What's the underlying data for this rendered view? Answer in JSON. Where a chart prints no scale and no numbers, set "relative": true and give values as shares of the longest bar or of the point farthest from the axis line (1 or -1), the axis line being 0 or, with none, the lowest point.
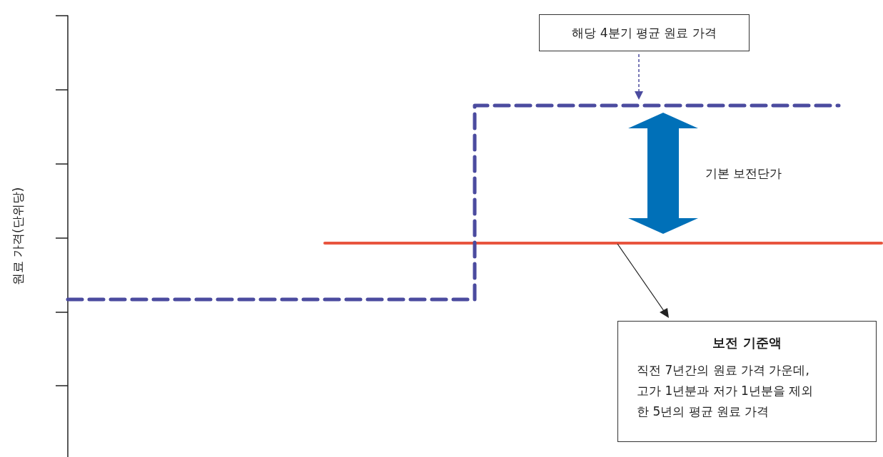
{
  "chart_data": {
    "type": "step",
    "ylabel": "원료 가격(단위당)",
    "relative": true,
    "marker": "none",
    "categories": [
      null,
      null,
      null,
      null,
      null,
      null,
      null,
      null,
      null,
      null,
      null,
      null,
      null,
      null,
      null,
      null,
      null,
      null,
      null,
      null,
      null,
      null,
      null,
      null,
      null,
      null,
      null,
      null,
      null,
      null,
      null,
      null,
      null,
      null,
      null,
      null,
      null,
      null,
      null
    ],
    "series": [
      {
        "color": "#4b4b9f",
        "line_style": "dashed",
        "values": [
          0,
          0,
          0,
          0,
          0,
          0,
          0,
          0,
          0,
          0,
          0,
          0,
          0,
          0,
          0,
          0,
          0,
          0,
          0,
          0,
          1,
          1,
          1,
          1,
          1,
          1,
          1,
          1,
          1,
          1,
          1,
          1,
          1,
          1,
          1,
          1,
          1,
          null,
          null
        ]
      },
      {
        "type": "line",
        "color": "#e8553f",
        "line_style": "solid",
        "values": [
          null,
          null,
          null,
          null,
          null,
          null,
          null,
          null,
          null,
          null,
          null,
          null,
          0.29,
          0.29,
          0.29,
          0.29,
          0.29,
          0.29,
          0.29,
          0.29,
          0.29,
          0.29,
          0.29,
          0.29,
          0.29,
          0.29,
          0.29,
          0.29,
          0.29,
          0.29,
          0.29,
          0.29,
          0.29,
          0.29,
          0.29,
          0.29,
          0.29,
          0.29,
          0.29
        ]
      }
    ],
    "annotations": [
      "해당 4분기 평균 원료 가격",
      "기본 보전단가",
      "보전 기준액",
      "직전 7년간의 원료 가격 가운데,\n고가 1년분과 저가 1년분을 제외\n한 5년의 평균 원료 가격"
    ]
  }
}
